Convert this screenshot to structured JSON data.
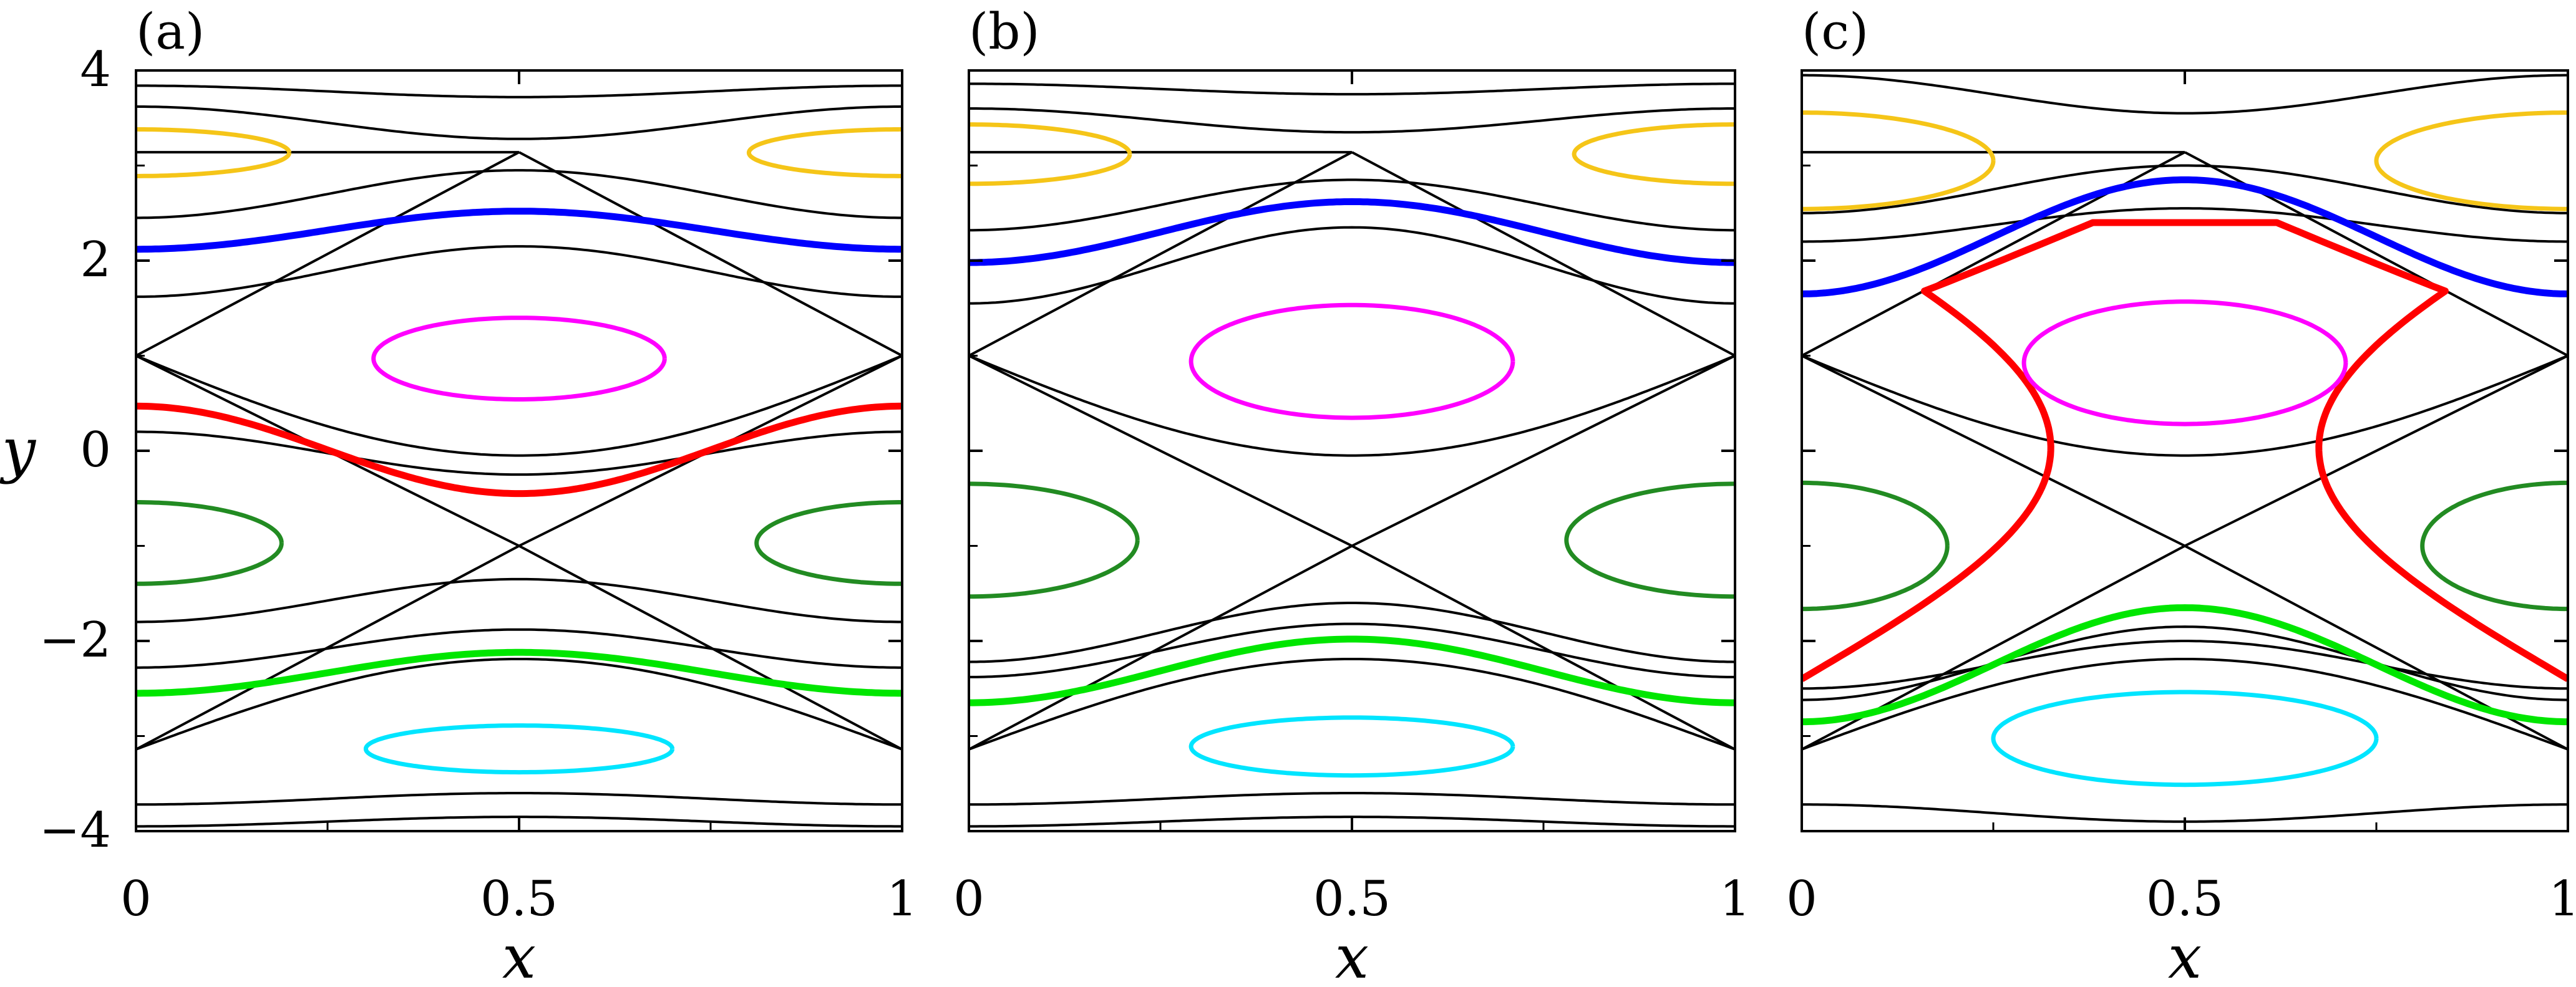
{
  "figure": {
    "panels": [
      "(a)",
      "(b)",
      "(c)"
    ],
    "xlabel": "x",
    "ylabel": "y",
    "x_ticks": [
      "0",
      "0.5",
      "1"
    ],
    "y_ticks": [
      "4",
      "2",
      "0",
      "−2",
      "−4"
    ]
  },
  "colors": {
    "separatrix": "#000000",
    "yellow": "#f5c518",
    "blue": "#0000ff",
    "magenta": "#ff00ff",
    "red": "#ff0000",
    "darkgreen": "#228b22",
    "lime": "#00e600",
    "cyan": "#00e5ff"
  },
  "chart_data": [
    {
      "type": "line",
      "title": "(a)",
      "xlabel": "x",
      "ylabel": "y",
      "xlim": [
        0,
        1
      ],
      "ylim": [
        -4,
        4
      ],
      "x_ticks": [
        0,
        0.5,
        1
      ],
      "y_ticks": [
        -4,
        -2,
        0,
        2,
        4
      ],
      "elliptic_points": [
        [
          0.5,
          1.0
        ],
        [
          0.0,
          -1.0
        ],
        [
          1.0,
          -1.0
        ],
        [
          0.0,
          3.14
        ],
        [
          1.0,
          3.14
        ],
        [
          0.5,
          -3.14
        ]
      ],
      "hyperbolic_points": [
        [
          0.0,
          1.0
        ],
        [
          1.0,
          1.0
        ],
        [
          0.5,
          -1.0
        ],
        [
          0.5,
          3.14
        ],
        [
          0.0,
          -3.14
        ],
        [
          1.0,
          -3.14
        ]
      ],
      "highlighted_curves": [
        {
          "color": "blue",
          "kind": "open",
          "y_at_x0": 2.12,
          "y_at_x05": 2.52
        },
        {
          "color": "red",
          "kind": "open",
          "y_at_x0": 0.47,
          "y_at_x05": -0.45
        },
        {
          "color": "lime",
          "kind": "open",
          "y_at_x0": -2.55,
          "y_at_x05": -2.12
        },
        {
          "color": "magenta",
          "kind": "island",
          "center": [
            0.5,
            1.0
          ],
          "x_range": [
            0.31,
            0.69
          ],
          "y_range": [
            0.42,
            1.52
          ]
        },
        {
          "color": "darkgreen",
          "kind": "island",
          "center": [
            0.0,
            -1.0
          ],
          "x_half_width": 0.19,
          "y_range": [
            -1.52,
            -0.42
          ]
        },
        {
          "color": "yellow",
          "kind": "island",
          "center": [
            0.0,
            3.14
          ],
          "x_half_width": 0.2,
          "y_range": [
            2.82,
            3.45
          ]
        },
        {
          "color": "cyan",
          "kind": "island",
          "center": [
            0.5,
            -3.14
          ],
          "x_range": [
            0.3,
            0.7
          ],
          "y_range": [
            -3.45,
            -2.82
          ]
        }
      ]
    },
    {
      "type": "line",
      "title": "(b)",
      "xlabel": "x",
      "ylabel": "",
      "xlim": [
        0,
        1
      ],
      "ylim": [
        -4,
        4
      ],
      "x_ticks": [
        0,
        0.5,
        1
      ],
      "y_ticks": [
        -4,
        -2,
        0,
        2,
        4
      ],
      "elliptic_points": [
        [
          0.5,
          1.0
        ],
        [
          0.0,
          -1.0
        ],
        [
          1.0,
          -1.0
        ],
        [
          0.0,
          3.14
        ],
        [
          1.0,
          3.14
        ],
        [
          0.5,
          -3.14
        ]
      ],
      "hyperbolic_points": [
        [
          0.0,
          1.0
        ],
        [
          1.0,
          1.0
        ],
        [
          0.5,
          -1.0
        ],
        [
          0.5,
          3.14
        ],
        [
          0.0,
          -3.14
        ],
        [
          1.0,
          -3.14
        ]
      ],
      "highlighted_curves": [
        {
          "color": "blue",
          "kind": "open",
          "y_at_x0": 1.98,
          "y_at_x05": 2.62
        },
        {
          "color": "lime",
          "kind": "open",
          "y_at_x0": -2.65,
          "y_at_x05": -1.98
        },
        {
          "color": "magenta",
          "kind": "island",
          "center": [
            0.5,
            1.0
          ],
          "x_range": [
            0.29,
            0.71
          ],
          "y_range": [
            0.18,
            1.7
          ]
        },
        {
          "color": "darkgreen",
          "kind": "island",
          "center": [
            0.0,
            -1.0
          ],
          "x_half_width": 0.22,
          "y_range": [
            -1.7,
            -0.18
          ]
        },
        {
          "color": "yellow",
          "kind": "island",
          "center": [
            0.0,
            3.14
          ],
          "x_half_width": 0.21,
          "y_range": [
            2.72,
            3.52
          ]
        },
        {
          "color": "cyan",
          "kind": "island",
          "center": [
            0.5,
            -3.14
          ],
          "x_range": [
            0.29,
            0.71
          ],
          "y_range": [
            -3.5,
            -2.72
          ]
        }
      ]
    },
    {
      "type": "line",
      "title": "(c)",
      "xlabel": "x",
      "ylabel": "",
      "xlim": [
        0,
        1
      ],
      "ylim": [
        -4,
        4
      ],
      "x_ticks": [
        0,
        0.5,
        1
      ],
      "y_ticks": [
        -4,
        -2,
        0,
        2,
        4
      ],
      "elliptic_points": [
        [
          0.5,
          1.0
        ],
        [
          0.0,
          -1.0
        ],
        [
          1.0,
          -1.0
        ],
        [
          0.0,
          3.14
        ],
        [
          1.0,
          3.14
        ],
        [
          0.5,
          -3.14
        ]
      ],
      "hyperbolic_points": [
        [
          0.0,
          1.0
        ],
        [
          1.0,
          1.0
        ],
        [
          0.5,
          -1.0
        ],
        [
          0.5,
          3.14
        ],
        [
          0.0,
          -3.14
        ],
        [
          1.0,
          -3.14
        ]
      ],
      "highlighted_curves": [
        {
          "color": "blue",
          "kind": "open",
          "y_at_x0": 1.65,
          "y_at_x05": 2.85
        },
        {
          "color": "lime",
          "kind": "open",
          "y_at_x0": -2.85,
          "y_at_x05": -1.65
        },
        {
          "color": "red",
          "kind": "deformed",
          "y_at_x0": -2.4,
          "y_at_x1": -2.4,
          "top_y": 2.4,
          "waist_x": [
            0.35,
            0.65
          ]
        },
        {
          "color": "magenta",
          "kind": "island",
          "center": [
            0.5,
            1.0
          ],
          "x_range": [
            0.29,
            0.71
          ],
          "y_range": [
            0.1,
            1.75
          ]
        },
        {
          "color": "darkgreen",
          "kind": "island",
          "center": [
            0.0,
            -1.0
          ],
          "x_half_width": 0.19,
          "y_range": [
            -1.85,
            -0.15
          ]
        },
        {
          "color": "yellow",
          "kind": "island",
          "center": [
            0.0,
            3.14
          ],
          "x_half_width": 0.25,
          "y_range": [
            2.4,
            3.7
          ]
        },
        {
          "color": "cyan",
          "kind": "island",
          "center": [
            0.5,
            -3.14
          ],
          "x_range": [
            0.25,
            0.75
          ],
          "y_range": [
            -3.65,
            -2.4
          ]
        }
      ]
    }
  ]
}
